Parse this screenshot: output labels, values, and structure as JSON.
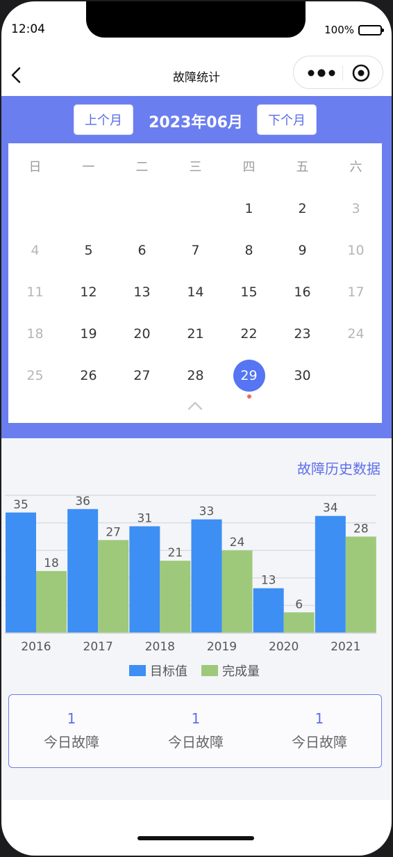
{
  "status_bar": {
    "time": "12:04",
    "battery": "100%"
  },
  "navbar": {
    "title": "故障统计"
  },
  "calendar": {
    "prev_label": "上个月",
    "next_label": "下个月",
    "month_title": "2023年06月",
    "weekdays": [
      "日",
      "一",
      "二",
      "三",
      "四",
      "五",
      "六"
    ],
    "days": [
      [
        "",
        "",
        "",
        "",
        "1",
        "2",
        "3"
      ],
      [
        "4",
        "5",
        "6",
        "7",
        "8",
        "9",
        "10"
      ],
      [
        "11",
        "12",
        "13",
        "14",
        "15",
        "16",
        "17"
      ],
      [
        "18",
        "19",
        "20",
        "21",
        "22",
        "23",
        "24"
      ],
      [
        "25",
        "26",
        "27",
        "28",
        "29",
        "30",
        ""
      ]
    ],
    "selected_day": "29",
    "marked_day": "29"
  },
  "history_link": "故障历史数据",
  "chart_data": {
    "type": "bar",
    "categories": [
      "2016",
      "2017",
      "2018",
      "2019",
      "2020",
      "2021"
    ],
    "series": [
      {
        "name": "目标值",
        "values": [
          35,
          36,
          31,
          33,
          13,
          34
        ],
        "color": "#3d8ff4"
      },
      {
        "name": "完成量",
        "values": [
          18,
          27,
          21,
          24,
          6,
          28
        ],
        "color": "#9fc97a"
      }
    ],
    "ylim": [
      0,
      40
    ],
    "grid": true,
    "legend": "bottom-center"
  },
  "stats": [
    {
      "value": "1",
      "label": "今日故障"
    },
    {
      "value": "1",
      "label": "今日故障"
    },
    {
      "value": "1",
      "label": "今日故障"
    }
  ],
  "colors": {
    "accent": "#6b7eef",
    "link": "#5e6fe8",
    "selected": "#5575f2"
  },
  "icons": {
    "back": "chevron-left-icon",
    "more": "more-dots-icon",
    "close": "target-circle-icon",
    "collapse": "chevron-up-icon"
  }
}
